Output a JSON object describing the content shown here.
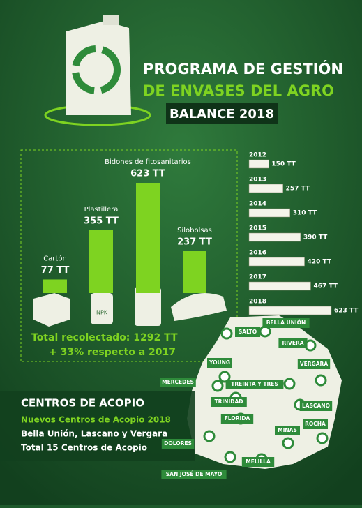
{
  "header": {
    "title_line1": "PROGRAMA DE GESTIÓN",
    "title_line2": "DE ENVASES DEL AGRO",
    "subtitle": "BALANCE 2018"
  },
  "chart_data": [
    {
      "type": "bar",
      "categories": [
        "Cartón",
        "Plastillera",
        "Bidones de fitosanitarios",
        "Silobolsas"
      ],
      "values": [
        77,
        355,
        623,
        237
      ],
      "value_labels": [
        "77 TT",
        "355 TT",
        "623 TT",
        "237 TT"
      ],
      "color": "#7ed321"
    },
    {
      "type": "pictogram",
      "categories": [
        "2012",
        "2013",
        "2014",
        "2015",
        "2016",
        "2017",
        "2018"
      ],
      "values": [
        150,
        257,
        310,
        390,
        420,
        467,
        623
      ],
      "value_labels": [
        "150 TT",
        "257 TT",
        "310 TT",
        "390 TT",
        "420 TT",
        "467 TT",
        "623 TT"
      ],
      "color": "#f4f4ea"
    }
  ],
  "icons": {
    "npk": "NPK"
  },
  "total": {
    "line1": "Total recolectado: 1292 TT",
    "line2": "+ 33% respecto a 2017"
  },
  "centers": {
    "title": "CENTROS DE ACOPIO",
    "subtitle": "Nuevos Centros de Acopio 2018",
    "line1": "Bella Unión, Lascano y Vergara",
    "line2": "Total 15 Centros de Acopio"
  },
  "map": {
    "labels": [
      "BELLA UNIÓN",
      "SALTO",
      "RIVERA",
      "YOUNG",
      "VERGARA",
      "MERCEDES",
      "TREINTA Y TRES",
      "TRINIDAD",
      "LASCANO",
      "FLORIDA",
      "ROCHA",
      "MINAS",
      "DOLORES",
      "MELILLA",
      "SAN JOSÉ DE MAYO"
    ]
  }
}
